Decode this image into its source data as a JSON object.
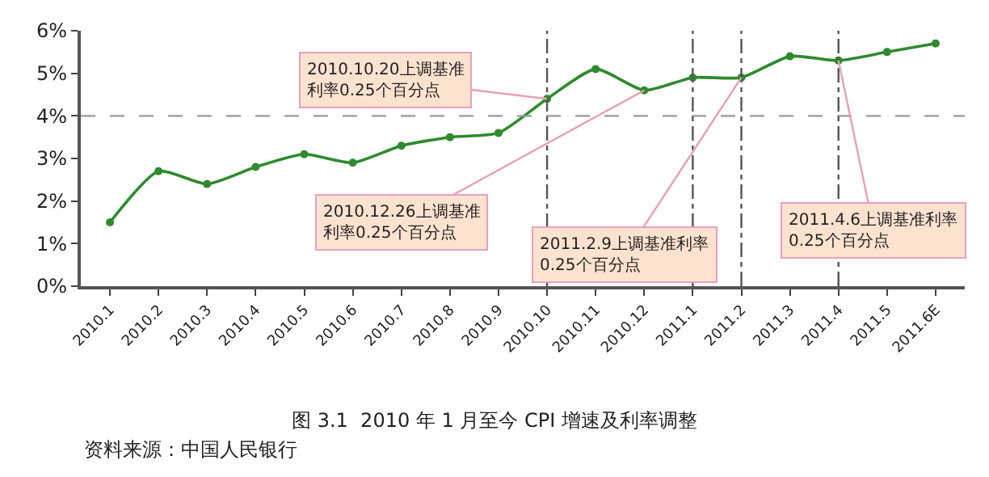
{
  "chart_data": {
    "type": "line",
    "title": "图 3.1  2010 年 1 月至今 CPI 增速及利率调整",
    "categories": [
      "2010.1",
      "2010.2",
      "2010.3",
      "2010.4",
      "2010.5",
      "2010.6",
      "2010.7",
      "2010.8",
      "2010.9",
      "2010.10",
      "2010.11",
      "2010.12",
      "2011.1",
      "2011.2",
      "2011.3",
      "2011.4",
      "2011.5",
      "2011.6E"
    ],
    "series": [
      {
        "color": "#2e8b2e",
        "values": [
          1.5,
          2.7,
          2.4,
          2.8,
          3.1,
          2.9,
          3.3,
          3.5,
          3.6,
          4.4,
          5.1,
          4.6,
          4.9,
          4.9,
          5.4,
          5.3,
          5.5,
          5.7
        ]
      }
    ],
    "ylim": [
      0,
      6
    ],
    "yticks": [
      {
        "value": 0,
        "label": "0%"
      },
      {
        "value": 1,
        "label": "1%"
      },
      {
        "value": 2,
        "label": "2%"
      },
      {
        "value": 3,
        "label": "3%"
      },
      {
        "value": 4,
        "label": "4%"
      },
      {
        "value": 5,
        "label": "5%"
      },
      {
        "value": 6,
        "label": "6%"
      }
    ],
    "marker": "circle",
    "ref_lines": [
      {
        "axis": "y",
        "value": 4,
        "line_style": "dashed",
        "color": "#999999"
      },
      {
        "axis": "x",
        "value": "2010.10",
        "line_style": "dashdot",
        "color": "#555555"
      },
      {
        "axis": "x",
        "value": "2011.1",
        "line_style": "dashdot",
        "color": "#555555"
      },
      {
        "axis": "x",
        "value": "2011.2",
        "line_style": "dashdot",
        "color": "#555555"
      },
      {
        "axis": "x",
        "value": "2011.4",
        "line_style": "dashdot",
        "color": "#555555"
      }
    ],
    "annotations": [
      {
        "text": "2010.10.20上调基准利率0.25个百分点",
        "x": "2010.10",
        "y": 4.4
      },
      {
        "text": "2010.12.26上调基准利率0.25个百分点",
        "x": "2010.12",
        "y": 4.6
      },
      {
        "text": "2011.2.9上调基准利率0.25个百分点",
        "x": "2011.2",
        "y": 4.9
      },
      {
        "text": "2011.4.6上调基准利率0.25个百分点",
        "x": "2011.4",
        "y": 5.3
      },
      "资料来源：中国人民银行"
    ]
  }
}
